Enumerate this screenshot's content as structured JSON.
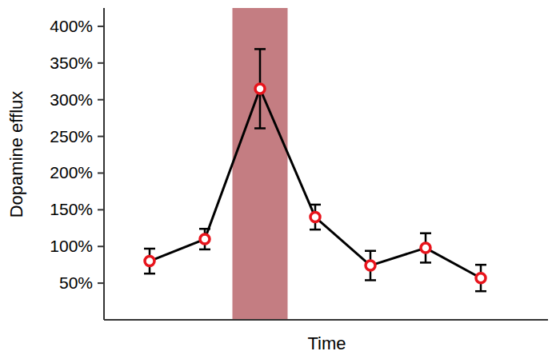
{
  "chart_data": {
    "type": "line",
    "x_label": "Time",
    "y_label": "Dopamine efflux",
    "categories": [
      null,
      null,
      null,
      null,
      null,
      null,
      null
    ],
    "series": [
      {
        "name": "Dopamine efflux",
        "color": "#000000",
        "marker": "circle",
        "values": [
          80,
          110,
          315,
          140,
          74,
          98,
          57
        ],
        "errors": [
          17,
          14,
          54,
          17,
          20,
          20,
          18
        ]
      }
    ],
    "highlight_category": 2,
    "highlight_color": "#c47d82",
    "ylim": [
      0,
      425
    ],
    "yticks": [
      {
        "value": 50,
        "label": "50%"
      },
      {
        "value": 100,
        "label": "100%"
      },
      {
        "value": 150,
        "label": "150%"
      },
      {
        "value": 200,
        "label": "200%"
      },
      {
        "value": 250,
        "label": "250%"
      },
      {
        "value": 300,
        "label": "300%"
      },
      {
        "value": 350,
        "label": "350%"
      },
      {
        "value": 400,
        "label": "400%"
      }
    ],
    "grid": false,
    "tick_labels": "y"
  }
}
